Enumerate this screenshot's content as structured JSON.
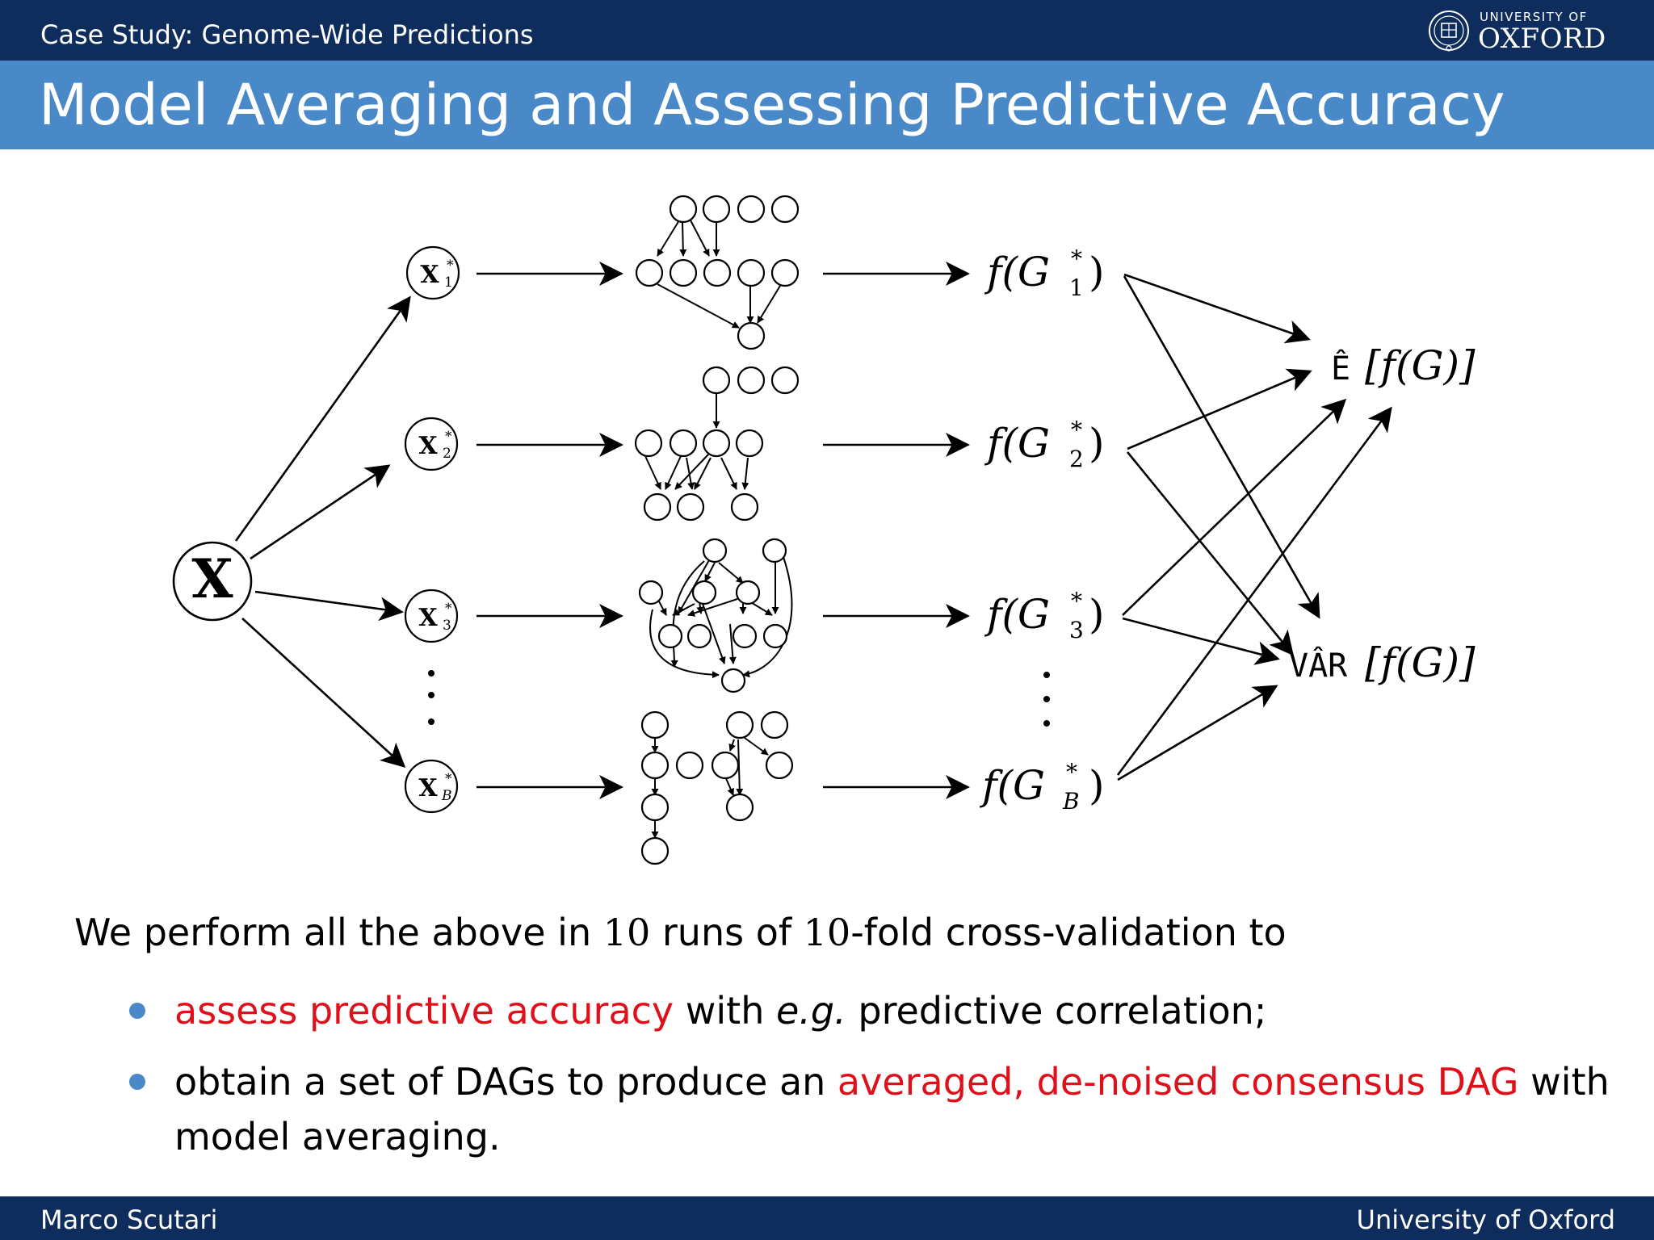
{
  "header": {
    "section": "Case Study:  Genome-Wide Predictions",
    "logo_small": "UNIVERSITY OF",
    "logo_big": "OXFORD"
  },
  "slide": {
    "title": "Model Averaging and Assessing Predictive Accuracy"
  },
  "diagram": {
    "source_label": "X",
    "samples": [
      {
        "base": "X",
        "sup": "*",
        "sub": "1"
      },
      {
        "base": "X",
        "sup": "*",
        "sub": "2"
      },
      {
        "base": "X",
        "sup": "*",
        "sub": "3"
      },
      {
        "base": "X",
        "sup": "*",
        "sub": "B"
      }
    ],
    "functions": [
      {
        "pre": "f(G",
        "sup": "*",
        "sub": "1",
        "post": ")"
      },
      {
        "pre": "f(G",
        "sup": "*",
        "sub": "2",
        "post": ")"
      },
      {
        "pre": "f(G",
        "sup": "*",
        "sub": "3",
        "post": ")"
      },
      {
        "pre": "f(G",
        "sup": "*",
        "sub": "B",
        "post": ")"
      }
    ],
    "expectation": {
      "op": "Ê",
      "arg": "[f(G)]"
    },
    "variance": {
      "op": "VÂR",
      "arg": "[f(G)]"
    }
  },
  "body": {
    "intro_pre": "We perform all the above in ",
    "intro_num1": "10",
    "intro_mid": " runs of ",
    "intro_num2": "10",
    "intro_post": "-fold cross-validation to",
    "bullet1_red": "assess predictive accuracy",
    "bullet1_mid": " with ",
    "bullet1_it": "e.g.",
    "bullet1_end": " predictive correlation;",
    "bullet2_start": "obtain a set of DAGs to produce an ",
    "bullet2_red": "averaged, de-noised consensus DAG",
    "bullet2_end": " with model averaging."
  },
  "footer": {
    "author": "Marco Scutari",
    "institution": "University of Oxford"
  },
  "colors": {
    "header_dark": "#0e2c5c",
    "title_blue": "#4a89c8",
    "highlight_red": "#e0101a",
    "bullet_blue": "#4a89c8"
  }
}
